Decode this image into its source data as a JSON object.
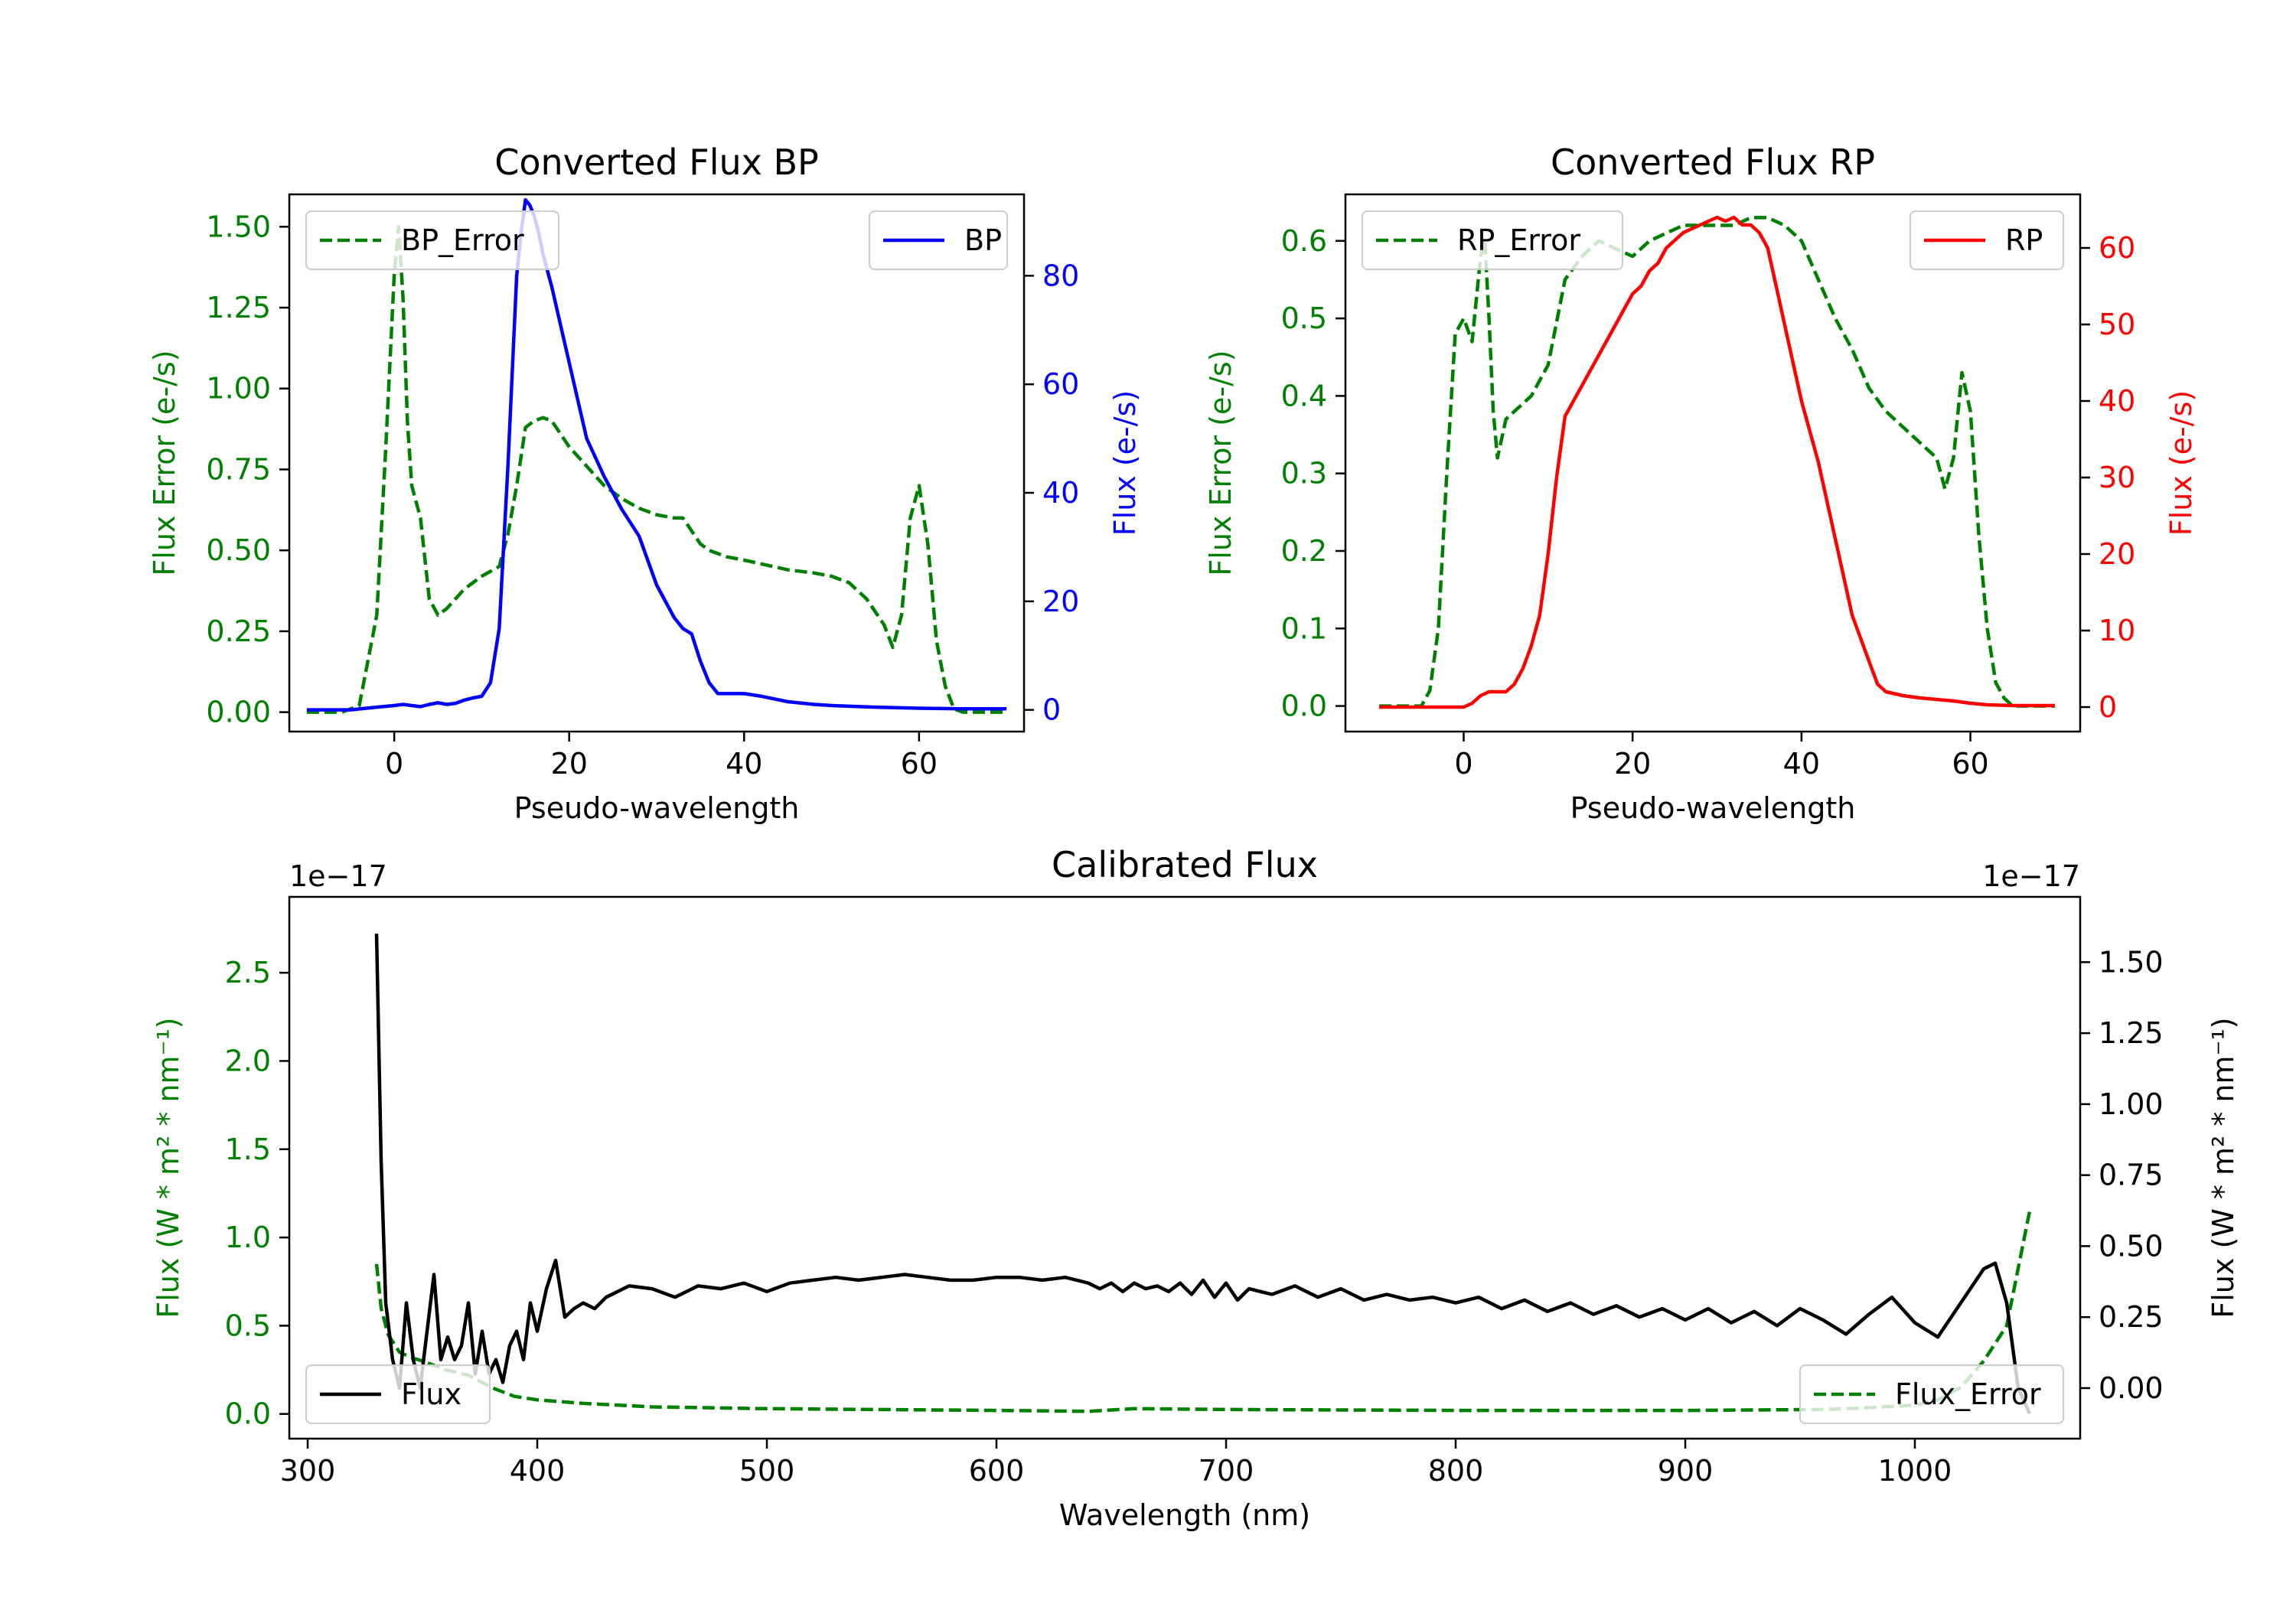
{
  "chart_data": [
    {
      "id": "bp",
      "type": "line",
      "title": "Converted Flux BP",
      "xlabel": "Pseudo-wavelength",
      "ylabel_left": "Flux Error (e-/s)",
      "ylabel_right": "Flux (e-/s)",
      "xlim": [
        -12,
        72
      ],
      "ylim_left": [
        -0.06,
        1.6
      ],
      "ylim_right": [
        -4,
        95
      ],
      "xticks": [
        0,
        20,
        40,
        60
      ],
      "yticks_left": [
        0.0,
        0.25,
        0.5,
        0.75,
        1.0,
        1.25,
        1.5
      ],
      "yticks_left_labels": [
        "0.00",
        "0.25",
        "0.50",
        "0.75",
        "1.00",
        "1.25",
        "1.50"
      ],
      "yticks_right": [
        0,
        20,
        40,
        60,
        80
      ],
      "color_left": "#008000",
      "color_right": "#0000ff",
      "legend_left": "BP_Error",
      "legend_right": "BP",
      "series": [
        {
          "name": "BP_Error",
          "axis": "left",
          "style": "dashed",
          "x": [
            -10,
            -6,
            -4,
            -2,
            -1,
            0,
            0.5,
            1,
            1.5,
            2,
            3,
            4,
            5,
            6,
            7,
            8,
            10,
            12,
            13,
            14,
            15,
            16,
            17,
            18,
            19,
            20,
            22,
            24,
            26,
            28,
            30,
            32,
            33,
            34,
            35,
            36,
            38,
            40,
            45,
            48,
            50,
            52,
            54,
            56,
            57,
            58,
            59,
            60,
            61,
            62,
            63,
            64,
            65,
            66,
            68,
            70
          ],
          "y": [
            0.0,
            0.0,
            0.02,
            0.3,
            0.8,
            1.35,
            1.5,
            1.28,
            0.9,
            0.7,
            0.6,
            0.35,
            0.3,
            0.32,
            0.35,
            0.38,
            0.42,
            0.45,
            0.55,
            0.7,
            0.88,
            0.9,
            0.91,
            0.9,
            0.86,
            0.82,
            0.76,
            0.7,
            0.66,
            0.63,
            0.61,
            0.6,
            0.6,
            0.56,
            0.52,
            0.5,
            0.48,
            0.47,
            0.44,
            0.43,
            0.42,
            0.4,
            0.35,
            0.27,
            0.2,
            0.3,
            0.6,
            0.7,
            0.52,
            0.22,
            0.08,
            0.01,
            0.0,
            0.0,
            0.0,
            0.0
          ]
        },
        {
          "name": "BP",
          "axis": "right",
          "style": "solid",
          "x": [
            -10,
            -5,
            -2,
            0,
            1,
            2,
            3,
            4,
            5,
            6,
            7,
            8,
            9,
            10,
            11,
            12,
            13,
            14,
            14.5,
            15,
            15.5,
            16,
            16.5,
            17,
            18,
            19,
            20,
            21,
            22,
            24,
            26,
            28,
            30,
            32,
            33,
            34,
            35,
            36,
            37,
            38,
            40,
            42,
            45,
            48,
            50,
            55,
            60,
            65,
            70
          ],
          "y": [
            0,
            0,
            0.5,
            0.8,
            1.0,
            0.8,
            0.6,
            1.0,
            1.3,
            1.0,
            1.2,
            1.8,
            2.2,
            2.5,
            5,
            15,
            45,
            80,
            88,
            94,
            93,
            91,
            88,
            84,
            78,
            71,
            64,
            57,
            50,
            43,
            37,
            32,
            23,
            17,
            15,
            14,
            9,
            5,
            3,
            3,
            3,
            2.5,
            1.5,
            1,
            0.8,
            0.5,
            0.3,
            0.2,
            0.2
          ]
        }
      ]
    },
    {
      "id": "rp",
      "type": "line",
      "title": "Converted Flux RP",
      "xlabel": "Pseudo-wavelength",
      "ylabel_left": "Flux Error (e-/s)",
      "ylabel_right": "Flux (e-/s)",
      "xlim": [
        -14,
        73
      ],
      "ylim_left": [
        -0.033,
        0.66
      ],
      "ylim_right": [
        -3.2,
        67
      ],
      "xticks": [
        0,
        20,
        40,
        60
      ],
      "yticks_left": [
        0.0,
        0.1,
        0.2,
        0.3,
        0.4,
        0.5,
        0.6
      ],
      "yticks_left_labels": [
        "0.0",
        "0.1",
        "0.2",
        "0.3",
        "0.4",
        "0.5",
        "0.6"
      ],
      "yticks_right": [
        0,
        10,
        20,
        30,
        40,
        50,
        60
      ],
      "color_left": "#008000",
      "color_right": "#ff0000",
      "legend_left": "RP_Error",
      "legend_right": "RP",
      "series": [
        {
          "name": "RP_Error",
          "axis": "left",
          "style": "dashed",
          "x": [
            -10,
            -5,
            -4,
            -3,
            -2,
            -1,
            0,
            1,
            2,
            2.5,
            3,
            3.5,
            4,
            5,
            6,
            8,
            10,
            12,
            14,
            16,
            18,
            20,
            22,
            24,
            26,
            28,
            30,
            32,
            34,
            36,
            38,
            40,
            42,
            44,
            46,
            48,
            50,
            52,
            54,
            56,
            57,
            58,
            59,
            60,
            61,
            62,
            63,
            64,
            65,
            70
          ],
          "y": [
            0.0,
            0.0,
            0.02,
            0.1,
            0.3,
            0.48,
            0.5,
            0.47,
            0.58,
            0.6,
            0.5,
            0.38,
            0.32,
            0.37,
            0.38,
            0.4,
            0.44,
            0.55,
            0.58,
            0.6,
            0.59,
            0.58,
            0.6,
            0.61,
            0.62,
            0.62,
            0.62,
            0.62,
            0.63,
            0.63,
            0.62,
            0.6,
            0.55,
            0.5,
            0.46,
            0.41,
            0.38,
            0.36,
            0.34,
            0.32,
            0.28,
            0.32,
            0.43,
            0.38,
            0.22,
            0.1,
            0.03,
            0.01,
            0.0,
            0.0
          ]
        },
        {
          "name": "RP",
          "axis": "right",
          "style": "solid",
          "x": [
            -10,
            -2,
            0,
            1,
            2,
            3,
            5,
            6,
            7,
            8,
            9,
            10,
            11,
            12,
            13,
            14,
            15,
            17,
            19,
            20,
            21,
            22,
            23,
            24,
            26,
            28,
            30,
            31,
            32,
            33,
            34,
            35,
            36,
            37,
            38,
            39,
            40,
            42,
            44,
            46,
            48,
            49,
            50,
            52,
            54,
            56,
            58,
            60,
            62,
            65,
            70
          ],
          "y": [
            0,
            0,
            0,
            0.5,
            1.5,
            2,
            2,
            3,
            5,
            8,
            12,
            20,
            30,
            38,
            40,
            42,
            44,
            48,
            52,
            54,
            55,
            57,
            58,
            60,
            62,
            63,
            64,
            63.5,
            64,
            63,
            63,
            62,
            60,
            55,
            50,
            45,
            40,
            32,
            22,
            12,
            6,
            3,
            2,
            1.5,
            1.2,
            1,
            0.8,
            0.5,
            0.3,
            0.2,
            0.2
          ]
        }
      ]
    },
    {
      "id": "cal",
      "type": "line",
      "title": "Calibrated Flux",
      "xlabel": "Wavelength (nm)",
      "ylabel_left": "Flux (W * m² * nm⁻¹)",
      "ylabel_right": "Flux (W * m² * nm⁻¹)",
      "offset_left": "1e−17",
      "offset_right": "1e−17",
      "xlim": [
        292,
        1072
      ],
      "ylim_left": [
        -0.14,
        2.93
      ],
      "ylim_right": [
        -0.178,
        1.73
      ],
      "xticks": [
        300,
        400,
        500,
        600,
        700,
        800,
        900,
        1000
      ],
      "yticks_left": [
        0.0,
        0.5,
        1.0,
        1.5,
        2.0,
        2.5
      ],
      "yticks_left_labels": [
        "0.0",
        "0.5",
        "1.0",
        "1.5",
        "2.0",
        "2.5"
      ],
      "yticks_right": [
        0.0,
        0.25,
        0.5,
        0.75,
        1.0,
        1.25,
        1.5
      ],
      "yticks_right_labels": [
        "0.00",
        "0.25",
        "0.50",
        "0.75",
        "1.00",
        "1.25",
        "1.50"
      ],
      "color_left": "#008000",
      "color_right": "#000000",
      "legend_left": "Flux",
      "legend_right": "Flux_Error",
      "series": [
        {
          "name": "Flux_Error",
          "axis": "left",
          "style": "dashed",
          "x": [
            330,
            332,
            335,
            340,
            345,
            350,
            360,
            370,
            380,
            390,
            400,
            420,
            450,
            500,
            600,
            640,
            660,
            700,
            800,
            900,
            960,
            980,
            1000,
            1010,
            1020,
            1030,
            1040,
            1050
          ],
          "y": [
            0.85,
            0.6,
            0.45,
            0.35,
            0.32,
            0.3,
            0.25,
            0.22,
            0.15,
            0.1,
            0.08,
            0.06,
            0.04,
            0.03,
            0.02,
            0.015,
            0.03,
            0.025,
            0.02,
            0.02,
            0.025,
            0.035,
            0.05,
            0.08,
            0.15,
            0.3,
            0.5,
            1.15
          ]
        },
        {
          "name": "Flux",
          "axis": "right",
          "style": "solid",
          "x": [
            330,
            332,
            334,
            337,
            340,
            343,
            346,
            349,
            352,
            355,
            358,
            361,
            364,
            367,
            370,
            373,
            376,
            379,
            382,
            385,
            388,
            391,
            394,
            397,
            400,
            404,
            408,
            412,
            416,
            420,
            425,
            430,
            440,
            450,
            460,
            470,
            480,
            490,
            500,
            510,
            520,
            530,
            540,
            550,
            560,
            570,
            580,
            590,
            600,
            610,
            620,
            630,
            640,
            645,
            650,
            655,
            660,
            665,
            670,
            675,
            680,
            685,
            690,
            695,
            700,
            705,
            710,
            720,
            730,
            740,
            750,
            760,
            770,
            780,
            790,
            800,
            810,
            820,
            830,
            840,
            850,
            860,
            870,
            880,
            890,
            900,
            910,
            920,
            930,
            940,
            950,
            960,
            970,
            980,
            990,
            1000,
            1010,
            1020,
            1030,
            1035,
            1040,
            1045,
            1050
          ],
          "y": [
            1.6,
            0.8,
            0.3,
            0.1,
            0.0,
            0.3,
            0.1,
            0.0,
            0.2,
            0.4,
            0.1,
            0.18,
            0.1,
            0.15,
            0.3,
            0.05,
            0.2,
            0.05,
            0.1,
            0.02,
            0.15,
            0.2,
            0.1,
            0.3,
            0.2,
            0.35,
            0.45,
            0.25,
            0.28,
            0.3,
            0.28,
            0.32,
            0.36,
            0.35,
            0.32,
            0.36,
            0.35,
            0.37,
            0.34,
            0.37,
            0.38,
            0.39,
            0.38,
            0.39,
            0.4,
            0.39,
            0.38,
            0.38,
            0.39,
            0.39,
            0.38,
            0.39,
            0.37,
            0.35,
            0.37,
            0.34,
            0.37,
            0.35,
            0.36,
            0.34,
            0.37,
            0.33,
            0.38,
            0.32,
            0.37,
            0.31,
            0.35,
            0.33,
            0.36,
            0.32,
            0.35,
            0.31,
            0.33,
            0.31,
            0.32,
            0.3,
            0.32,
            0.28,
            0.31,
            0.27,
            0.3,
            0.26,
            0.29,
            0.25,
            0.28,
            0.24,
            0.28,
            0.23,
            0.27,
            0.22,
            0.28,
            0.24,
            0.19,
            0.26,
            0.32,
            0.23,
            0.18,
            0.3,
            0.42,
            0.44,
            0.3,
            0.0,
            -0.09
          ]
        }
      ]
    }
  ]
}
